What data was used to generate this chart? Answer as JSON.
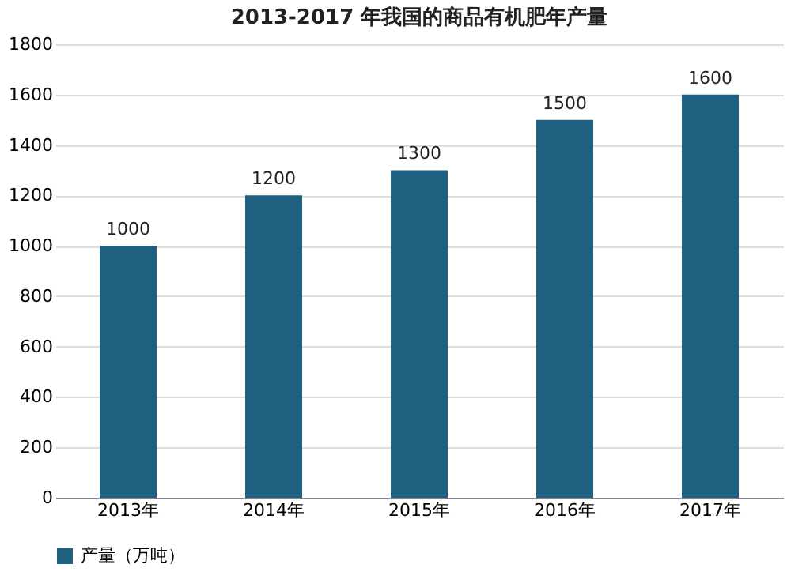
{
  "chart_data": {
    "type": "bar",
    "title": "2013-2017 年我国的商品有机肥年产量",
    "categories": [
      "2013年",
      "2014年",
      "2015年",
      "2016年",
      "2017年"
    ],
    "series": [
      {
        "name": "产量（万吨）",
        "color": "#1f5f80",
        "values": [
          1000,
          1200,
          1300,
          1500,
          1600
        ]
      }
    ],
    "ylim": [
      0,
      1800
    ],
    "yticks": [
      0,
      200,
      400,
      600,
      800,
      1000,
      1200,
      1400,
      1600,
      1800
    ],
    "grid": "y",
    "legend": "bottom",
    "data_labels": true
  }
}
